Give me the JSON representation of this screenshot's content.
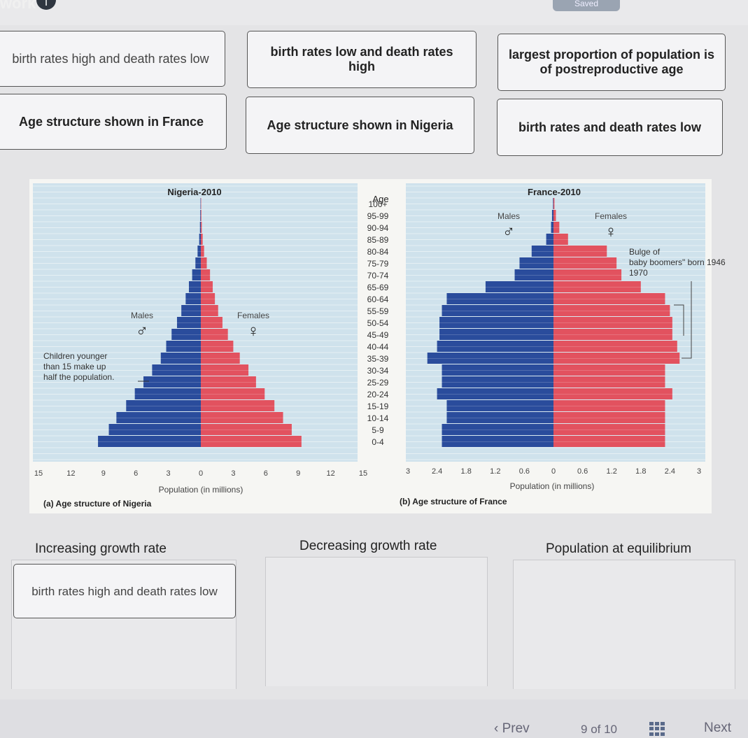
{
  "header": {
    "logo_text": "work",
    "info_icon": "info-icon",
    "saved_label": "Saved"
  },
  "cards": [
    {
      "id": "card-1",
      "label": "birth rates high and death rates low"
    },
    {
      "id": "card-2",
      "label": "birth rates low and death rates high"
    },
    {
      "id": "card-3",
      "label": "largest proportion of population is of postreproductive age"
    },
    {
      "id": "card-4",
      "label": "Age structure shown in France"
    },
    {
      "id": "card-5",
      "label": "Age structure shown in Nigeria"
    },
    {
      "id": "card-6",
      "label": "birth rates and death rates low"
    }
  ],
  "figure": {
    "age_header": "Age",
    "x_axis_label": "Population (in millions)",
    "age_groups": [
      "100+",
      "95-99",
      "90-94",
      "85-89",
      "80-84",
      "75-79",
      "70-74",
      "65-69",
      "60-64",
      "55-59",
      "50-54",
      "45-49",
      "40-44",
      "35-39",
      "30-34",
      "25-29",
      "20-24",
      "15-19",
      "10-14",
      "5-9",
      "0-4"
    ]
  },
  "chart_data": [
    {
      "type": "bar",
      "title": "Nigeria-2010",
      "caption": "(a) Age structure of Nigeria",
      "xlabel": "Population (in millions)",
      "ylabel": "Age",
      "categories": [
        "100+",
        "95-99",
        "90-94",
        "85-89",
        "80-84",
        "75-79",
        "70-74",
        "65-69",
        "60-64",
        "55-59",
        "50-54",
        "45-49",
        "40-44",
        "35-39",
        "30-34",
        "25-29",
        "20-24",
        "15-19",
        "10-14",
        "5-9",
        "0-4"
      ],
      "series": [
        {
          "name": "Males",
          "values": [
            0.03,
            0.05,
            0.08,
            0.15,
            0.3,
            0.5,
            0.8,
            1.1,
            1.4,
            1.8,
            2.2,
            2.7,
            3.2,
            3.7,
            4.5,
            5.3,
            6.1,
            6.9,
            7.8,
            8.5,
            9.5
          ]
        },
        {
          "name": "Females",
          "values": [
            0.03,
            0.05,
            0.09,
            0.17,
            0.3,
            0.55,
            0.85,
            1.1,
            1.3,
            1.6,
            2.0,
            2.5,
            3.0,
            3.6,
            4.4,
            5.1,
            5.9,
            6.8,
            7.6,
            8.4,
            9.3
          ]
        }
      ],
      "xlim": [
        -15,
        15
      ],
      "xticks": [
        "15",
        "12",
        "9",
        "6",
        "3",
        "0",
        "3",
        "6",
        "9",
        "12",
        "15"
      ],
      "symbols": {
        "males": "♂",
        "females": "♀"
      },
      "annotations": [
        "Males",
        "Females",
        "Children younger than 15 make up half the population."
      ],
      "colors": {
        "males": "#2a4c9c",
        "females": "#e2525f",
        "background": "#cfe2ec"
      }
    },
    {
      "type": "bar",
      "title": "France-2010",
      "caption": "(b) Age structure of France",
      "xlabel": "Population (in millions)",
      "ylabel": "Age",
      "categories": [
        "100+",
        "95-99",
        "90-94",
        "85-89",
        "80-84",
        "75-79",
        "70-74",
        "65-69",
        "60-64",
        "55-59",
        "50-54",
        "45-49",
        "40-44",
        "35-39",
        "30-34",
        "25-29",
        "20-24",
        "15-19",
        "10-14",
        "5-9",
        "0-4"
      ],
      "series": [
        {
          "name": "Males",
          "values": [
            0.01,
            0.03,
            0.05,
            0.15,
            0.45,
            0.7,
            0.8,
            1.4,
            2.2,
            2.3,
            2.35,
            2.35,
            2.4,
            2.6,
            2.3,
            2.3,
            2.4,
            2.2,
            2.2,
            2.3,
            2.3
          ]
        },
        {
          "name": "Females",
          "values": [
            0.02,
            0.05,
            0.12,
            0.3,
            1.1,
            1.3,
            1.4,
            1.8,
            2.3,
            2.4,
            2.45,
            2.45,
            2.55,
            2.6,
            2.3,
            2.3,
            2.45,
            2.3,
            2.3,
            2.3,
            2.3
          ]
        }
      ],
      "xlim": [
        -3,
        3
      ],
      "xticks": [
        "3",
        "2.4",
        "1.8",
        "1.2",
        "0.6",
        "0",
        "0.6",
        "1.2",
        "1.8",
        "2.4",
        "3"
      ],
      "symbols": {
        "males": "♂",
        "females": "♀"
      },
      "annotations": [
        "Males",
        "Females",
        "Bulge of \"baby boomers\" born 1946–1970"
      ],
      "colors": {
        "males": "#2a4c9c",
        "females": "#e2525f",
        "background": "#cfe2ec"
      }
    }
  ],
  "bins": [
    {
      "id": "bin-increasing",
      "title": "Increasing growth rate",
      "items": [
        "birth rates high and death rates low"
      ]
    },
    {
      "id": "bin-decreasing",
      "title": "Decreasing growth rate",
      "items": []
    },
    {
      "id": "bin-equilibrium",
      "title": "Population at equilibrium",
      "items": []
    }
  ],
  "pagination": {
    "prev_label": "Prev",
    "current": "9",
    "of_label": "of 10",
    "next_label": "Next",
    "grid_icon": "grid-icon"
  }
}
